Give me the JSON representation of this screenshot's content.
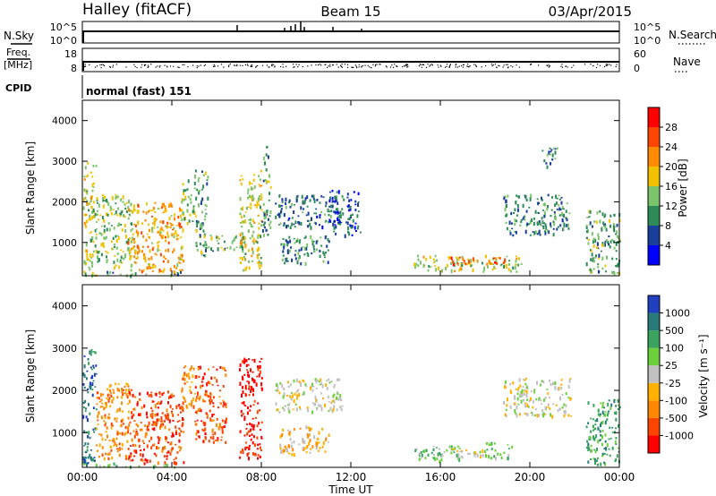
{
  "header": {
    "station": "Halley (fitACF)",
    "beam": "Beam 15",
    "date": "03/Apr/2015"
  },
  "nsky_panel": {
    "left_label": "N.Sky",
    "left_ticks": [
      "10^5",
      "10^0"
    ],
    "right_label": "N.Search",
    "right_ticks": [
      "10^5",
      "10^0"
    ]
  },
  "freq_panel": {
    "left_label_1": "Freq.",
    "left_label_2": "[MHz]",
    "left_ticks": [
      "18",
      "8"
    ],
    "right_label": "Nave",
    "right_ticks": [
      "60",
      "0"
    ]
  },
  "cpid": {
    "label": "CPID",
    "mode_text": "normal (fast) 151"
  },
  "colors": {
    "background": "#ffffff",
    "axis": "#000000",
    "power_scale": [
      "#0000ff",
      "#1a3e9c",
      "#2e8b57",
      "#7cc46b",
      "#f2c200",
      "#ff8c00",
      "#ff4500",
      "#ff0000"
    ],
    "velocity_scale": [
      "#1f3fbf",
      "#2a7a7a",
      "#3aa35f",
      "#6ccf3c",
      "#c0c0c0",
      "#ffb000",
      "#ff8800",
      "#ff4400",
      "#ff0000"
    ]
  },
  "chart_data": [
    {
      "type": "heatmap",
      "name": "power",
      "ylabel": "Slant Range [km]",
      "ylim": [
        180,
        4500
      ],
      "yticks": [
        "1000",
        "2000",
        "3000",
        "4000"
      ],
      "xlim": [
        "00:00",
        "24:00"
      ],
      "colorbar": {
        "label": "Power [dB]",
        "ticks": [
          "4",
          "8",
          "12",
          "16",
          "20",
          "24",
          "28"
        ],
        "range": [
          0,
          32
        ]
      },
      "regions": [
        {
          "t0": 0.0,
          "t1": 0.6,
          "r0": 250,
          "r1": 3000,
          "v": 16
        },
        {
          "t0": 0.6,
          "t1": 2.2,
          "r0": 400,
          "r1": 2200,
          "v": 14
        },
        {
          "t0": 2.0,
          "t1": 4.5,
          "r0": 250,
          "r1": 2000,
          "v": 20
        },
        {
          "t0": 4.4,
          "t1": 5.0,
          "r0": 1500,
          "r1": 2600,
          "v": 14
        },
        {
          "t0": 5.0,
          "t1": 5.6,
          "r0": 700,
          "r1": 2800,
          "v": 12
        },
        {
          "t0": 5.6,
          "t1": 7.2,
          "r0": 800,
          "r1": 1200,
          "v": 12
        },
        {
          "t0": 7.0,
          "t1": 8.0,
          "r0": 300,
          "r1": 2800,
          "v": 16
        },
        {
          "t0": 8.0,
          "t1": 8.4,
          "r0": 1200,
          "r1": 3400,
          "v": 12
        },
        {
          "t0": 8.6,
          "t1": 11.6,
          "r0": 1400,
          "r1": 2200,
          "v": 8
        },
        {
          "t0": 8.8,
          "t1": 11.0,
          "r0": 500,
          "r1": 1200,
          "v": 10
        },
        {
          "t0": 11.0,
          "t1": 12.4,
          "r0": 1200,
          "r1": 2300,
          "v": 6
        },
        {
          "t0": 14.8,
          "t1": 19.6,
          "r0": 300,
          "r1": 700,
          "v": 16
        },
        {
          "t0": 16.4,
          "t1": 19.0,
          "r0": 450,
          "r1": 650,
          "v": 24
        },
        {
          "t0": 18.8,
          "t1": 21.8,
          "r0": 1200,
          "r1": 2200,
          "v": 10
        },
        {
          "t0": 20.5,
          "t1": 21.2,
          "r0": 2900,
          "r1": 3400,
          "v": 8
        },
        {
          "t0": 22.5,
          "t1": 24.0,
          "r0": 250,
          "r1": 1800,
          "v": 12
        },
        {
          "t0": 0.0,
          "t1": 4.4,
          "r0": 200,
          "r1": 300,
          "v": 12
        }
      ]
    },
    {
      "type": "heatmap",
      "name": "velocity",
      "ylabel": "Slant Range [km]",
      "ylim": [
        180,
        4500
      ],
      "yticks": [
        "1000",
        "2000",
        "3000",
        "4000"
      ],
      "xlim": [
        "00:00",
        "24:00"
      ],
      "xticks": [
        "00:00",
        "04:00",
        "08:00",
        "12:00",
        "16:00",
        "20:00",
        "00:00"
      ],
      "xlabel": "Time UT",
      "colorbar": {
        "label": "Velocity [m s⁻¹]",
        "ticks": [
          "1000",
          "500",
          "100",
          "25",
          "-25",
          "-100",
          "-500",
          "-1000"
        ]
      },
      "regions": [
        {
          "t0": 0.0,
          "t1": 0.6,
          "r0": 250,
          "r1": 3000,
          "c": 1
        },
        {
          "t0": 0.6,
          "t1": 2.2,
          "r0": 400,
          "r1": 2200,
          "c": 6
        },
        {
          "t0": 2.0,
          "t1": 4.5,
          "r0": 300,
          "r1": 2000,
          "c": 7
        },
        {
          "t0": 4.4,
          "t1": 5.0,
          "r0": 1500,
          "r1": 2600,
          "c": 6
        },
        {
          "t0": 5.0,
          "t1": 6.4,
          "r0": 800,
          "r1": 2600,
          "c": 7
        },
        {
          "t0": 7.0,
          "t1": 8.0,
          "r0": 400,
          "r1": 2800,
          "c": 8
        },
        {
          "t0": 8.6,
          "t1": 11.6,
          "r0": 1500,
          "r1": 2300,
          "c": 4
        },
        {
          "t0": 8.8,
          "t1": 11.0,
          "r0": 500,
          "r1": 1200,
          "c": 5
        },
        {
          "t0": 14.8,
          "t1": 17.0,
          "r0": 300,
          "r1": 700,
          "c": 3
        },
        {
          "t0": 16.4,
          "t1": 18.6,
          "r0": 450,
          "r1": 650,
          "c": 4
        },
        {
          "t0": 18.0,
          "t1": 19.2,
          "r0": 400,
          "r1": 800,
          "c": 3
        },
        {
          "t0": 18.8,
          "t1": 21.8,
          "r0": 1400,
          "r1": 2300,
          "c": 4
        },
        {
          "t0": 22.5,
          "t1": 24.0,
          "r0": 250,
          "r1": 1800,
          "c": 2
        },
        {
          "t0": 0.0,
          "t1": 4.4,
          "r0": 200,
          "r1": 300,
          "c": 3
        }
      ]
    }
  ]
}
